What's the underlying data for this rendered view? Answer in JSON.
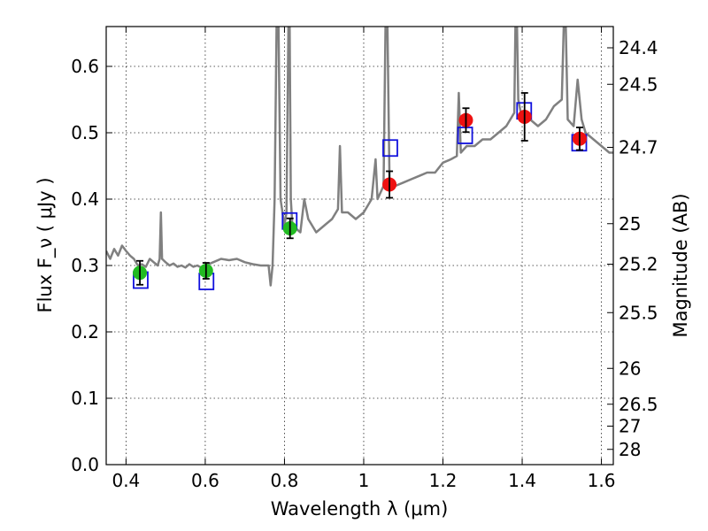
{
  "chart_data": {
    "type": "scatter",
    "title": "",
    "xlabel": "Wavelength  λ (μm)",
    "ylabel": "Flux  F_ν  ( μJy )",
    "y2label": "Magnitude (AB)",
    "xlim": [
      0.35,
      1.63
    ],
    "ylim": [
      0.0,
      0.66
    ],
    "grid": true,
    "x_ticks": [
      0.4,
      0.6,
      0.8,
      1.0,
      1.2,
      1.4,
      1.6
    ],
    "x_tick_labels": [
      "0.4",
      "0.6",
      "0.8",
      "1",
      "1.2",
      "1.4",
      "1.6"
    ],
    "y_ticks": [
      0.0,
      0.1,
      0.2,
      0.3,
      0.4,
      0.5,
      0.6
    ],
    "y_tick_labels": [
      "0.0",
      "0.1",
      "0.2",
      "0.3",
      "0.4",
      "0.5",
      "0.6"
    ],
    "y2_ticks": [
      {
        "label": "24.4",
        "flux": 0.628
      },
      {
        "label": "24.5",
        "flux": 0.573
      },
      {
        "label": "24.7",
        "flux": 0.478
      },
      {
        "label": "25",
        "flux": 0.363
      },
      {
        "label": "25.2",
        "flux": 0.302
      },
      {
        "label": "25.5",
        "flux": 0.229
      },
      {
        "label": "26",
        "flux": 0.145
      },
      {
        "label": "26.5",
        "flux": 0.091
      },
      {
        "label": "27",
        "flux": 0.058
      },
      {
        "label": "28",
        "flux": 0.023
      }
    ],
    "model_spectrum": {
      "color": "#808080",
      "points": [
        [
          0.35,
          0.322
        ],
        [
          0.36,
          0.31
        ],
        [
          0.37,
          0.325
        ],
        [
          0.38,
          0.315
        ],
        [
          0.39,
          0.33
        ],
        [
          0.4,
          0.322
        ],
        [
          0.41,
          0.315
        ],
        [
          0.42,
          0.31
        ],
        [
          0.43,
          0.3
        ],
        [
          0.44,
          0.302
        ],
        [
          0.45,
          0.298
        ],
        [
          0.46,
          0.31
        ],
        [
          0.47,
          0.305
        ],
        [
          0.48,
          0.3
        ],
        [
          0.485,
          0.31
        ],
        [
          0.488,
          0.38
        ],
        [
          0.491,
          0.31
        ],
        [
          0.5,
          0.305
        ],
        [
          0.51,
          0.3
        ],
        [
          0.52,
          0.303
        ],
        [
          0.53,
          0.298
        ],
        [
          0.54,
          0.3
        ],
        [
          0.55,
          0.297
        ],
        [
          0.56,
          0.302
        ],
        [
          0.57,
          0.298
        ],
        [
          0.58,
          0.3
        ],
        [
          0.59,
          0.297
        ],
        [
          0.6,
          0.3
        ],
        [
          0.62,
          0.305
        ],
        [
          0.64,
          0.31
        ],
        [
          0.66,
          0.308
        ],
        [
          0.68,
          0.31
        ],
        [
          0.7,
          0.305
        ],
        [
          0.72,
          0.302
        ],
        [
          0.74,
          0.3
        ],
        [
          0.76,
          0.3
        ],
        [
          0.765,
          0.27
        ],
        [
          0.77,
          0.3
        ],
        [
          0.775,
          0.4
        ],
        [
          0.78,
          0.66
        ],
        [
          0.785,
          0.66
        ],
        [
          0.79,
          0.4
        ],
        [
          0.8,
          0.36
        ],
        [
          0.805,
          0.38
        ],
        [
          0.81,
          0.66
        ],
        [
          0.813,
          0.66
        ],
        [
          0.816,
          0.4
        ],
        [
          0.82,
          0.36
        ],
        [
          0.84,
          0.35
        ],
        [
          0.85,
          0.4
        ],
        [
          0.86,
          0.37
        ],
        [
          0.87,
          0.36
        ],
        [
          0.88,
          0.35
        ],
        [
          0.9,
          0.36
        ],
        [
          0.92,
          0.37
        ],
        [
          0.935,
          0.385
        ],
        [
          0.94,
          0.48
        ],
        [
          0.945,
          0.38
        ],
        [
          0.96,
          0.38
        ],
        [
          0.98,
          0.37
        ],
        [
          1.0,
          0.38
        ],
        [
          1.02,
          0.4
        ],
        [
          1.03,
          0.46
        ],
        [
          1.035,
          0.4
        ],
        [
          1.05,
          0.42
        ],
        [
          1.055,
          0.66
        ],
        [
          1.06,
          0.66
        ],
        [
          1.065,
          0.43
        ],
        [
          1.08,
          0.42
        ],
        [
          1.1,
          0.425
        ],
        [
          1.12,
          0.43
        ],
        [
          1.14,
          0.435
        ],
        [
          1.16,
          0.44
        ],
        [
          1.18,
          0.44
        ],
        [
          1.2,
          0.455
        ],
        [
          1.22,
          0.46
        ],
        [
          1.235,
          0.465
        ],
        [
          1.24,
          0.56
        ],
        [
          1.245,
          0.47
        ],
        [
          1.26,
          0.48
        ],
        [
          1.28,
          0.48
        ],
        [
          1.3,
          0.49
        ],
        [
          1.32,
          0.49
        ],
        [
          1.34,
          0.5
        ],
        [
          1.36,
          0.51
        ],
        [
          1.38,
          0.53
        ],
        [
          1.383,
          0.66
        ],
        [
          1.387,
          0.66
        ],
        [
          1.39,
          0.55
        ],
        [
          1.4,
          0.52
        ],
        [
          1.42,
          0.52
        ],
        [
          1.44,
          0.51
        ],
        [
          1.46,
          0.52
        ],
        [
          1.48,
          0.54
        ],
        [
          1.5,
          0.55
        ],
        [
          1.505,
          0.66
        ],
        [
          1.51,
          0.66
        ],
        [
          1.515,
          0.52
        ],
        [
          1.53,
          0.51
        ],
        [
          1.54,
          0.58
        ],
        [
          1.55,
          0.52
        ],
        [
          1.56,
          0.5
        ],
        [
          1.58,
          0.49
        ],
        [
          1.6,
          0.48
        ],
        [
          1.62,
          0.47
        ],
        [
          1.63,
          0.47
        ]
      ]
    },
    "series": [
      {
        "marker": "circle",
        "color": "#22bb22",
        "points": [
          {
            "x": 0.435,
            "y": 0.289,
            "err": 0.018
          },
          {
            "x": 0.602,
            "y": 0.292,
            "err": 0.012
          },
          {
            "x": 0.814,
            "y": 0.356,
            "err": 0.015
          }
        ]
      },
      {
        "marker": "circle",
        "color": "#ee1111",
        "points": [
          {
            "x": 1.065,
            "y": 0.422,
            "err": 0.02
          },
          {
            "x": 1.258,
            "y": 0.519,
            "err": 0.018
          },
          {
            "x": 1.406,
            "y": 0.524,
            "err": 0.036
          },
          {
            "x": 1.545,
            "y": 0.491,
            "err": 0.017
          }
        ]
      },
      {
        "marker": "open-square",
        "color": "#1111dd",
        "points": [
          {
            "x": 0.437,
            "y": 0.278
          },
          {
            "x": 0.603,
            "y": 0.276
          },
          {
            "x": 0.813,
            "y": 0.367
          },
          {
            "x": 1.067,
            "y": 0.477
          },
          {
            "x": 1.256,
            "y": 0.496
          },
          {
            "x": 1.405,
            "y": 0.533
          },
          {
            "x": 1.544,
            "y": 0.485
          }
        ]
      }
    ]
  }
}
